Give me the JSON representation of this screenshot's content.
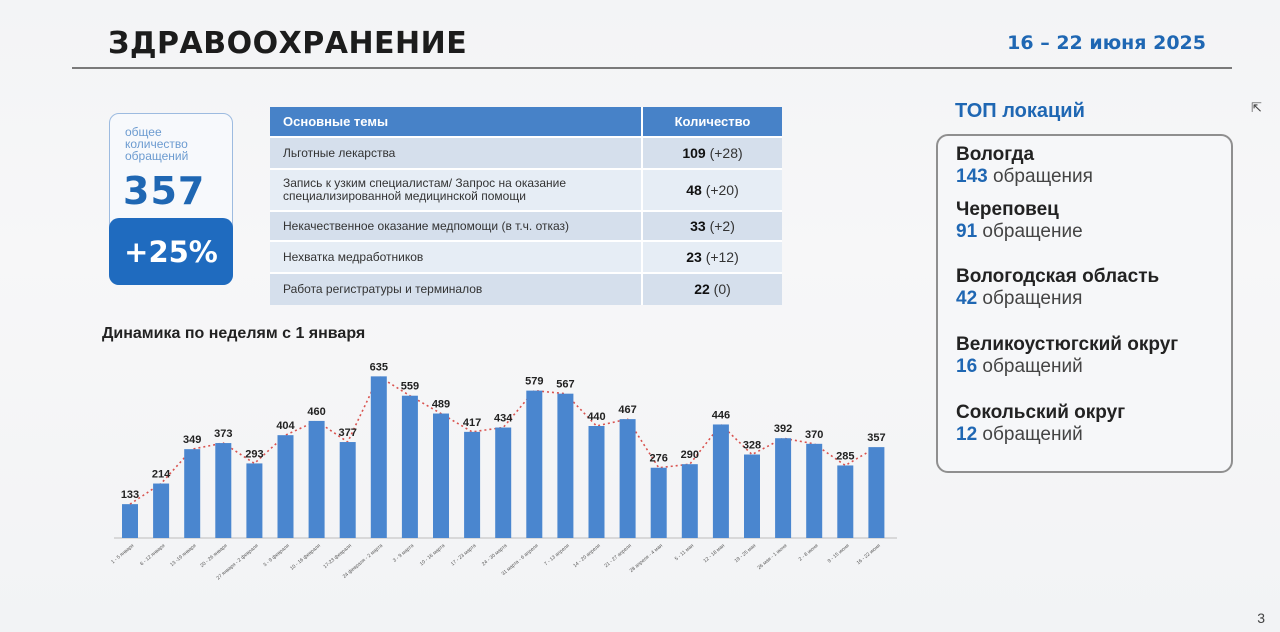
{
  "header": {
    "title": "ЗДРАВООХРАНЕНИЕ",
    "date": "16 – 22 июня 2025"
  },
  "total": {
    "caption": "общее количество обращений",
    "value": "357",
    "change": "+25%"
  },
  "topics": {
    "col_theme": "Основные темы",
    "col_count": "Количество",
    "rows": [
      {
        "theme": "Льготные лекарства",
        "count": "109",
        "delta": "(+28)"
      },
      {
        "theme": "Запись к узким специалистам/ Запрос на оказание специализированной медицинской помощи",
        "count": "48",
        "delta": "(+20)"
      },
      {
        "theme": "Некачественное оказание медпомощи (в т.ч. отказ)",
        "count": "33",
        "delta": "(+2)"
      },
      {
        "theme": "Нехватка медработников",
        "count": "23",
        "delta": "(+12)"
      },
      {
        "theme": "Работа регистратуры и терминалов",
        "count": "22",
        "delta": "(0)"
      }
    ]
  },
  "chart_title": "Динамика по неделям с 1 января",
  "chart_data": {
    "type": "bar",
    "title": "Динамика по неделям с 1 января",
    "categories": [
      "1 - 5 января",
      "6 - 12 января",
      "13 -19 января",
      "20 - 26 января",
      "27 января - 2 февраля",
      "3 - 9 февраля",
      "10 - 16 февраля",
      "17-23 февраля",
      "24 февраля - 2 марта",
      "3 - 9 марта",
      "10 - 16 марта",
      "17 - 23 марта",
      "24 - 30 марта",
      "31 марта - 6 апреля",
      "7 - 13 апреля",
      "14 - 20 апреля",
      "21 - 27 апреля",
      "28 апреля - 4 мая",
      "5 - 11 мая",
      "12 - 18 мая",
      "19 - 25 мая",
      "26 мая - 1 июня",
      "2 - 8 июня",
      "9 - 15 июня",
      "16 - 22 июня"
    ],
    "values": [
      133,
      214,
      349,
      373,
      293,
      404,
      460,
      377,
      635,
      559,
      489,
      417,
      434,
      579,
      567,
      440,
      467,
      276,
      290,
      446,
      328,
      392,
      370,
      285,
      357
    ],
    "trend_line": "dotted red",
    "ylim": [
      0,
      660
    ],
    "grid": false,
    "colors": {
      "bar": "#4a86cf",
      "trend": "#d9534f"
    }
  },
  "top_locations": {
    "title": "ТОП локаций",
    "items": [
      {
        "name": "Вологда",
        "count": "143",
        "unit": "обращения"
      },
      {
        "name": "Череповец",
        "count": "91",
        "unit": "обращение"
      },
      {
        "name": "Вологодская область",
        "count": "42",
        "unit": "обращения"
      },
      {
        "name": "Великоустюгский округ",
        "count": "16",
        "unit": "обращений"
      },
      {
        "name": "Сокольский округ",
        "count": "12",
        "unit": "обращений"
      }
    ]
  },
  "page_number": "3",
  "colors": {
    "accent": "#1f67b3",
    "table_header": "#4782c8",
    "change_badge": "#1f6bbf"
  }
}
